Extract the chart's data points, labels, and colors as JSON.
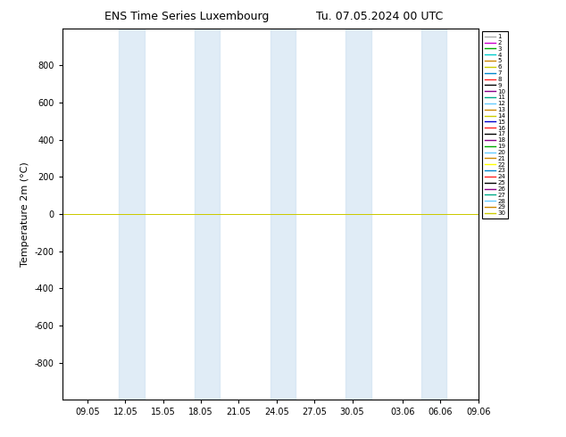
{
  "title": "ENS Time Series Luxembourg",
  "title2": "Tu. 07.05.2024 00 UTC",
  "ylabel": "Temperature 2m (°C)",
  "ylim_top": -1000,
  "ylim_bottom": 1000,
  "yticks": [
    -800,
    -600,
    -400,
    -200,
    0,
    200,
    400,
    600,
    800
  ],
  "x_tick_labels": [
    "09.05",
    "12.05",
    "15.05",
    "18.05",
    "21.05",
    "24.05",
    "27.05",
    "30.05",
    "03.06",
    "06.06",
    "09.06"
  ],
  "x_tick_positions": [
    2,
    5,
    8,
    11,
    14,
    17,
    20,
    23,
    27,
    30,
    33
  ],
  "total_days": 33,
  "band_positions": [
    [
      4.5,
      6.5
    ],
    [
      10.5,
      12.5
    ],
    [
      16.5,
      18.5
    ],
    [
      22.5,
      24.5
    ],
    [
      28.5,
      30.5
    ]
  ],
  "legend_colors": [
    "#aaaaaa",
    "#cc00cc",
    "#00aa00",
    "#00cccc",
    "#cc8800",
    "#cccc00",
    "#0088cc",
    "#ff2222",
    "#000000",
    "#880088",
    "#00aa88",
    "#66ccff",
    "#cc8800",
    "#cccc00",
    "#0000cc",
    "#ff2222",
    "#000000",
    "#880088",
    "#00aa00",
    "#66ccff",
    "#cc8800",
    "#ffff00",
    "#0088cc",
    "#ff2222",
    "#000000",
    "#880088",
    "#00aa88",
    "#66ccff",
    "#cc8800",
    "#cccc00"
  ],
  "num_members": 30,
  "line_y_value": 0,
  "figsize": [
    6.34,
    4.9
  ],
  "dpi": 100,
  "bg_color": "#ffffff",
  "band_color": "#cce0f0",
  "band_alpha": 0.6
}
